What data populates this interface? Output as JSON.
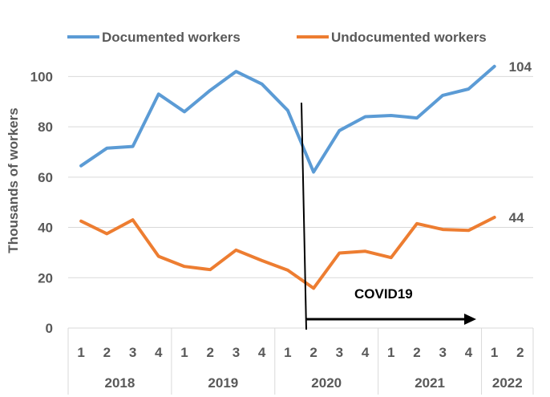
{
  "chart_data": {
    "type": "line",
    "ylabel": "Thousands of workers",
    "ylim": [
      0,
      110
    ],
    "yticks": [
      0,
      20,
      40,
      60,
      80,
      100
    ],
    "grid": true,
    "legend_position": "top",
    "quarters": [
      "1",
      "2",
      "3",
      "4",
      "1",
      "2",
      "3",
      "4",
      "1",
      "2",
      "3",
      "4",
      "1",
      "2",
      "3",
      "4",
      "1",
      "2"
    ],
    "years": [
      {
        "label": "2018",
        "span": 4
      },
      {
        "label": "2019",
        "span": 4
      },
      {
        "label": "2020",
        "span": 4
      },
      {
        "label": "2021",
        "span": 4
      },
      {
        "label": "2022",
        "span": 2
      }
    ],
    "series": [
      {
        "name": "Documented workers",
        "color": "#5B9BD5",
        "values": [
          64.5,
          71.5,
          72.2,
          93,
          86,
          94.5,
          102,
          97,
          86.5,
          62,
          78.5,
          84,
          84.5,
          83.5,
          92.5,
          95,
          104,
          null
        ],
        "end_label": "104"
      },
      {
        "name": "Undocumented workers",
        "color": "#ED7D31",
        "values": [
          42.5,
          37.5,
          43,
          28.5,
          24.5,
          23.2,
          31,
          26.8,
          23,
          15.8,
          29.8,
          30.5,
          28,
          41.5,
          39.2,
          38.8,
          44,
          null
        ],
        "end_label": "44"
      }
    ],
    "annotation": {
      "label": "COVID19",
      "color": "#000000"
    }
  }
}
